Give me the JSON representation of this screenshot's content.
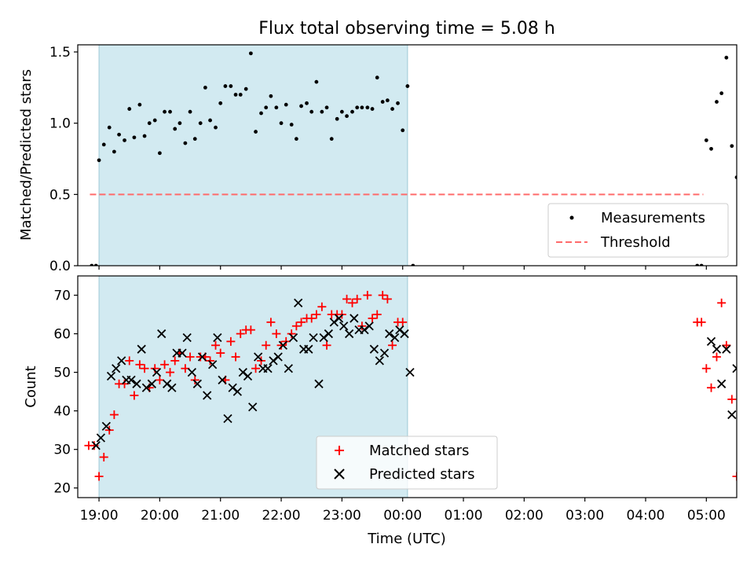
{
  "title": "Flux total observing time = 5.08 h",
  "xlabel": "Time (UTC)",
  "colors": {
    "shade": "#add8e6",
    "threshold": "#ff6b6b",
    "matched": "#ff0000",
    "predicted": "#000000",
    "measure": "#000000"
  },
  "chart_data": [
    {
      "type": "scatter",
      "ylabel": "Matched/Predicted stars",
      "xlim": [
        18.65,
        29.5
      ],
      "ylim": [
        0,
        1.55
      ],
      "yticks": [
        0.0,
        0.5,
        1.0,
        1.5
      ],
      "ytick_labels": [
        "0.0",
        "0.5",
        "1.0",
        "1.5"
      ],
      "shaded_region": [
        19.0,
        24.08
      ],
      "threshold": {
        "name": "Threshold",
        "y": 0.5,
        "x": [
          18.85,
          28.95
        ]
      },
      "legend": [
        "Measurements",
        "Threshold"
      ],
      "legend_position": "lower-right",
      "series": [
        {
          "name": "Measurements",
          "points": [
            [
              18.88,
              0.0
            ],
            [
              18.95,
              0.0
            ],
            [
              19.0,
              0.74
            ],
            [
              19.08,
              0.85
            ],
            [
              19.17,
              0.97
            ],
            [
              19.25,
              0.8
            ],
            [
              19.33,
              0.92
            ],
            [
              19.42,
              0.88
            ],
            [
              19.5,
              1.1
            ],
            [
              19.58,
              0.9
            ],
            [
              19.67,
              1.13
            ],
            [
              19.75,
              0.91
            ],
            [
              19.83,
              1.0
            ],
            [
              19.92,
              1.02
            ],
            [
              20.0,
              0.79
            ],
            [
              20.08,
              1.08
            ],
            [
              20.17,
              1.08
            ],
            [
              20.25,
              0.96
            ],
            [
              20.33,
              1.0
            ],
            [
              20.42,
              0.86
            ],
            [
              20.5,
              1.08
            ],
            [
              20.58,
              0.89
            ],
            [
              20.67,
              1.0
            ],
            [
              20.75,
              1.25
            ],
            [
              20.83,
              1.02
            ],
            [
              20.92,
              0.97
            ],
            [
              21.0,
              1.14
            ],
            [
              21.08,
              1.26
            ],
            [
              21.17,
              1.26
            ],
            [
              21.25,
              1.2
            ],
            [
              21.33,
              1.2
            ],
            [
              21.42,
              1.24
            ],
            [
              21.5,
              1.49
            ],
            [
              21.58,
              0.94
            ],
            [
              21.67,
              1.07
            ],
            [
              21.75,
              1.11
            ],
            [
              21.83,
              1.19
            ],
            [
              21.92,
              1.11
            ],
            [
              22.0,
              1.0
            ],
            [
              22.08,
              1.13
            ],
            [
              22.17,
              0.99
            ],
            [
              22.25,
              0.89
            ],
            [
              22.33,
              1.12
            ],
            [
              22.42,
              1.14
            ],
            [
              22.5,
              1.08
            ],
            [
              22.58,
              1.29
            ],
            [
              22.67,
              1.08
            ],
            [
              22.75,
              1.11
            ],
            [
              22.83,
              0.89
            ],
            [
              22.92,
              1.03
            ],
            [
              23.0,
              1.08
            ],
            [
              23.08,
              1.05
            ],
            [
              23.17,
              1.08
            ],
            [
              23.25,
              1.11
            ],
            [
              23.33,
              1.11
            ],
            [
              23.42,
              1.11
            ],
            [
              23.5,
              1.1
            ],
            [
              23.58,
              1.32
            ],
            [
              23.67,
              1.15
            ],
            [
              23.75,
              1.16
            ],
            [
              23.83,
              1.1
            ],
            [
              23.92,
              1.14
            ],
            [
              24.0,
              0.95
            ],
            [
              24.08,
              1.26
            ],
            [
              24.17,
              0.0
            ],
            [
              28.85,
              0.0
            ],
            [
              28.92,
              0.0
            ],
            [
              29.0,
              0.88
            ],
            [
              29.08,
              0.82
            ],
            [
              29.17,
              1.15
            ],
            [
              29.25,
              1.21
            ],
            [
              29.33,
              1.46
            ],
            [
              29.42,
              0.84
            ],
            [
              29.5,
              0.62
            ]
          ]
        }
      ]
    },
    {
      "type": "scatter",
      "ylabel": "Count",
      "xlim": [
        18.65,
        29.5
      ],
      "ylim": [
        17.5,
        75
      ],
      "yticks": [
        20,
        30,
        40,
        50,
        60,
        70
      ],
      "ytick_labels": [
        "20",
        "30",
        "40",
        "50",
        "60",
        "70"
      ],
      "xticks": [
        19,
        20,
        21,
        22,
        23,
        24,
        25,
        26,
        27,
        28,
        29
      ],
      "xtick_labels": [
        "19:00",
        "20:00",
        "21:00",
        "22:00",
        "23:00",
        "00:00",
        "01:00",
        "02:00",
        "03:00",
        "04:00",
        "05:00"
      ],
      "shaded_region": [
        19.0,
        24.08
      ],
      "legend": [
        "Matched stars",
        "Predicted stars"
      ],
      "legend_position": "lower-center",
      "series": [
        {
          "name": "Matched stars",
          "marker": "+",
          "points": [
            [
              18.83,
              31
            ],
            [
              18.92,
              31
            ],
            [
              19.0,
              23
            ],
            [
              19.08,
              28
            ],
            [
              19.17,
              35
            ],
            [
              19.25,
              39
            ],
            [
              19.33,
              47
            ],
            [
              19.42,
              47
            ],
            [
              19.5,
              53
            ],
            [
              19.58,
              44
            ],
            [
              19.67,
              52
            ],
            [
              19.75,
              51
            ],
            [
              19.83,
              46
            ],
            [
              19.92,
              51
            ],
            [
              20.0,
              48
            ],
            [
              20.08,
              52
            ],
            [
              20.17,
              50
            ],
            [
              20.25,
              53
            ],
            [
              20.33,
              55
            ],
            [
              20.42,
              51
            ],
            [
              20.5,
              54
            ],
            [
              20.58,
              48
            ],
            [
              20.67,
              54
            ],
            [
              20.75,
              54
            ],
            [
              20.83,
              53
            ],
            [
              20.92,
              57
            ],
            [
              21.0,
              55
            ],
            [
              21.08,
              48
            ],
            [
              21.17,
              58
            ],
            [
              21.25,
              54
            ],
            [
              21.33,
              60
            ],
            [
              21.42,
              61
            ],
            [
              21.5,
              61
            ],
            [
              21.58,
              51
            ],
            [
              21.67,
              53
            ],
            [
              21.75,
              57
            ],
            [
              21.83,
              63
            ],
            [
              21.92,
              60
            ],
            [
              22.0,
              57
            ],
            [
              22.08,
              58
            ],
            [
              22.17,
              60
            ],
            [
              22.25,
              62
            ],
            [
              22.33,
              63
            ],
            [
              22.42,
              64
            ],
            [
              22.5,
              64
            ],
            [
              22.58,
              65
            ],
            [
              22.67,
              67
            ],
            [
              22.75,
              57
            ],
            [
              22.83,
              65
            ],
            [
              22.92,
              65
            ],
            [
              23.0,
              65
            ],
            [
              23.08,
              69
            ],
            [
              23.17,
              68
            ],
            [
              23.25,
              69
            ],
            [
              23.33,
              62
            ],
            [
              23.42,
              70
            ],
            [
              23.5,
              64
            ],
            [
              23.58,
              65
            ],
            [
              23.67,
              70
            ],
            [
              23.75,
              69
            ],
            [
              23.83,
              57
            ],
            [
              23.92,
              63
            ],
            [
              24.0,
              63
            ],
            [
              28.85,
              63
            ],
            [
              28.92,
              63
            ],
            [
              29.0,
              51
            ],
            [
              29.08,
              46
            ],
            [
              29.17,
              54
            ],
            [
              29.25,
              68
            ],
            [
              29.33,
              57
            ],
            [
              29.42,
              43
            ],
            [
              29.5,
              23
            ]
          ]
        },
        {
          "name": "Predicted stars",
          "marker": "x",
          "points": [
            [
              18.95,
              31
            ],
            [
              19.03,
              33
            ],
            [
              19.12,
              36
            ],
            [
              19.2,
              49
            ],
            [
              19.28,
              51
            ],
            [
              19.37,
              53
            ],
            [
              19.45,
              48
            ],
            [
              19.53,
              48
            ],
            [
              19.62,
              47
            ],
            [
              19.7,
              56
            ],
            [
              19.78,
              46
            ],
            [
              19.87,
              47
            ],
            [
              19.95,
              50
            ],
            [
              20.03,
              60
            ],
            [
              20.12,
              47
            ],
            [
              20.2,
              46
            ],
            [
              20.28,
              55
            ],
            [
              20.37,
              55
            ],
            [
              20.45,
              59
            ],
            [
              20.53,
              50
            ],
            [
              20.62,
              47
            ],
            [
              20.7,
              54
            ],
            [
              20.78,
              44
            ],
            [
              20.87,
              52
            ],
            [
              20.95,
              59
            ],
            [
              21.03,
              48
            ],
            [
              21.12,
              38
            ],
            [
              21.2,
              46
            ],
            [
              21.28,
              45
            ],
            [
              21.37,
              50
            ],
            [
              21.45,
              49
            ],
            [
              21.53,
              41
            ],
            [
              21.62,
              54
            ],
            [
              21.7,
              51
            ],
            [
              21.78,
              51
            ],
            [
              21.87,
              53
            ],
            [
              21.95,
              54
            ],
            [
              22.03,
              57
            ],
            [
              22.12,
              51
            ],
            [
              22.2,
              59
            ],
            [
              22.28,
              68
            ],
            [
              22.37,
              56
            ],
            [
              22.45,
              56
            ],
            [
              22.53,
              59
            ],
            [
              22.62,
              47
            ],
            [
              22.7,
              59
            ],
            [
              22.78,
              60
            ],
            [
              22.87,
              63
            ],
            [
              22.95,
              64
            ],
            [
              23.03,
              62
            ],
            [
              23.12,
              60
            ],
            [
              23.2,
              64
            ],
            [
              23.28,
              61
            ],
            [
              23.37,
              61
            ],
            [
              23.45,
              62
            ],
            [
              23.53,
              56
            ],
            [
              23.62,
              53
            ],
            [
              23.7,
              55
            ],
            [
              23.78,
              60
            ],
            [
              23.87,
              59
            ],
            [
              23.95,
              61
            ],
            [
              24.03,
              60
            ],
            [
              24.12,
              50
            ],
            [
              29.08,
              58
            ],
            [
              29.17,
              56
            ],
            [
              29.25,
              47
            ],
            [
              29.33,
              56
            ],
            [
              29.42,
              39
            ],
            [
              29.5,
              51
            ]
          ]
        }
      ]
    }
  ]
}
